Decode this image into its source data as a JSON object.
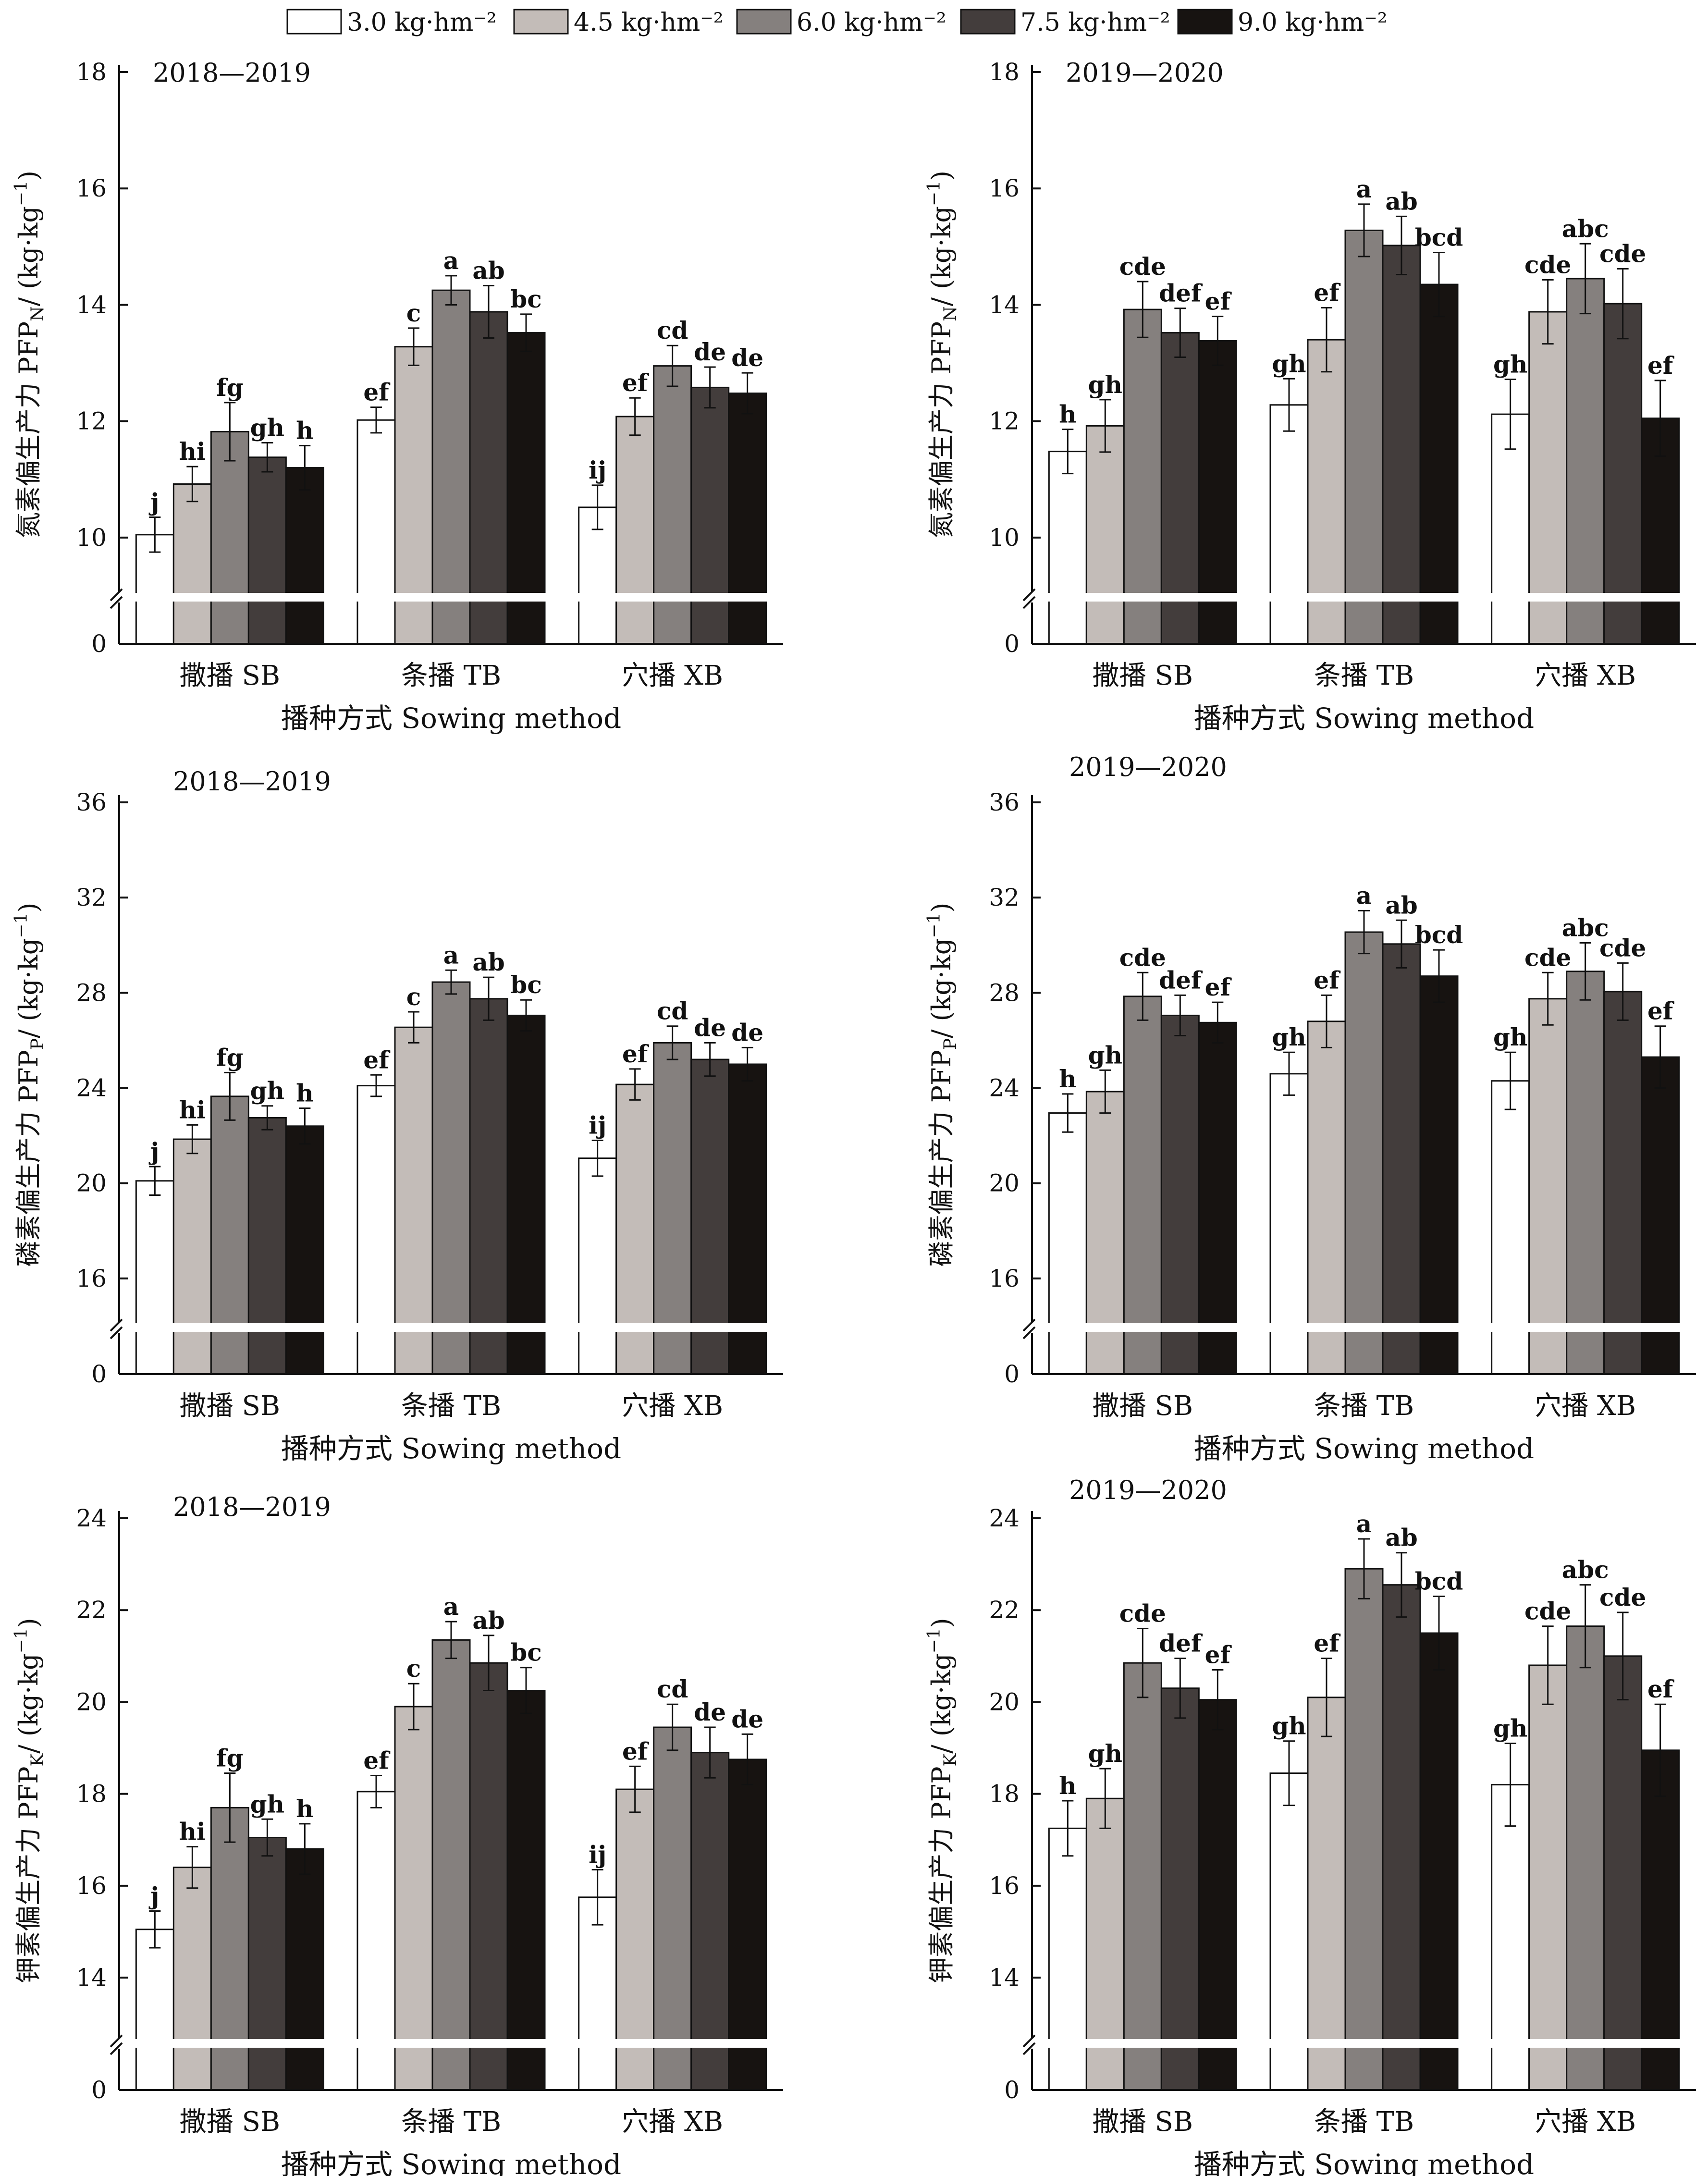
{
  "legend": {
    "series_names": [
      "3.0 kg·hm⁻²",
      "4.5 kg·hm⁻²",
      "6.0 kg·hm⁻²",
      "7.5 kg·hm⁻²",
      "9.0 kg·hm⁻²"
    ],
    "colors": [
      "#ffffff",
      "#c3bcb8",
      "#85807e",
      "#433d3c",
      "#171311"
    ],
    "position": "top"
  },
  "chart_data": [
    {
      "type": "bar",
      "panel": "a",
      "title": "2018—2019",
      "xlabel": "播种方式 Sowing method",
      "ylabel": "氮素偏生产力 PFPN/ (kg·kg⁻¹)",
      "ylabel_main": "氮素偏生产力 PFP",
      "ylabel_sub": "N",
      "ylabel_unit": "/ (kg·kg",
      "ylabel_sup": "−1",
      "ylabel_close": ")",
      "categories": [
        "撒播 SB",
        "条播 TB",
        "穴播 XB"
      ],
      "ylim": [
        0,
        18
      ],
      "ybreak_from": 9,
      "yticks": [
        0,
        10,
        12,
        14,
        16,
        18
      ],
      "series": [
        {
          "name": "3.0 kg·hm⁻²",
          "values": [
            10.05,
            12.02,
            10.52
          ],
          "errors": [
            0.3,
            0.22,
            0.38
          ],
          "letters": [
            "j",
            "ef",
            "ij"
          ]
        },
        {
          "name": "4.5 kg·hm⁻²",
          "values": [
            10.92,
            13.28,
            12.08
          ],
          "errors": [
            0.3,
            0.32,
            0.32
          ],
          "letters": [
            "hi",
            "c",
            "ef"
          ]
        },
        {
          "name": "6.0 kg·hm⁻²",
          "values": [
            11.82,
            14.25,
            12.95
          ],
          "errors": [
            0.5,
            0.25,
            0.35
          ],
          "letters": [
            "fg",
            "a",
            "cd"
          ]
        },
        {
          "name": "7.5 kg·hm⁻²",
          "values": [
            11.38,
            13.88,
            12.58
          ],
          "errors": [
            0.25,
            0.45,
            0.35
          ],
          "letters": [
            "gh",
            "ab",
            "de"
          ]
        },
        {
          "name": "9.0 kg·hm⁻²",
          "values": [
            11.2,
            13.52,
            12.48
          ],
          "errors": [
            0.38,
            0.32,
            0.35
          ],
          "letters": [
            "h",
            "bc",
            "de"
          ]
        }
      ]
    },
    {
      "type": "bar",
      "panel": "b",
      "title": "2019—2020",
      "xlabel": "播种方式 Sowing method",
      "ylabel": "氮素偏生产力 PFPN/ (kg·kg⁻¹)",
      "ylabel_main": "氮素偏生产力 PFP",
      "ylabel_sub": "N",
      "ylabel_unit": "/ (kg·kg",
      "ylabel_sup": "−1",
      "ylabel_close": ")",
      "categories": [
        "撒播 SB",
        "条播 TB",
        "穴播 XB"
      ],
      "ylim": [
        0,
        18
      ],
      "ybreak_from": 9,
      "yticks": [
        0,
        10,
        12,
        14,
        16,
        18
      ],
      "series": [
        {
          "name": "3.0 kg·hm⁻²",
          "values": [
            11.48,
            12.28,
            12.12
          ],
          "errors": [
            0.38,
            0.45,
            0.6
          ],
          "letters": [
            "h",
            "gh",
            "gh"
          ]
        },
        {
          "name": "4.5 kg·hm⁻²",
          "values": [
            11.92,
            13.4,
            13.88
          ],
          "errors": [
            0.45,
            0.55,
            0.55
          ],
          "letters": [
            "gh",
            "ef",
            "cde"
          ]
        },
        {
          "name": "6.0 kg·hm⁻²",
          "values": [
            13.92,
            15.28,
            14.45
          ],
          "errors": [
            0.48,
            0.45,
            0.6
          ],
          "letters": [
            "cde",
            "a",
            "abc"
          ]
        },
        {
          "name": "7.5 kg·hm⁻²",
          "values": [
            13.52,
            15.02,
            14.02
          ],
          "errors": [
            0.42,
            0.5,
            0.6
          ],
          "letters": [
            "def",
            "ab",
            "cde"
          ]
        },
        {
          "name": "9.0 kg·hm⁻²",
          "values": [
            13.38,
            14.35,
            12.05
          ],
          "errors": [
            0.42,
            0.55,
            0.65
          ],
          "letters": [
            "ef",
            "bcd",
            "ef"
          ]
        }
      ]
    },
    {
      "type": "bar",
      "panel": "c",
      "title": "2018—2019",
      "xlabel": "播种方式 Sowing method",
      "ylabel": "磷素偏生产力 PFPP/ (kg·kg⁻¹)",
      "ylabel_main": "磷素偏生产力 PFP",
      "ylabel_sub": "P",
      "ylabel_unit": "/ (kg·kg",
      "ylabel_sup": "−1",
      "ylabel_close": ")",
      "categories": [
        "撒播 SB",
        "条播 TB",
        "穴播 XB"
      ],
      "ylim": [
        0,
        36
      ],
      "ybreak_from": 14,
      "yticks": [
        0,
        16,
        20,
        24,
        28,
        32,
        36
      ],
      "series": [
        {
          "name": "3.0 kg·hm⁻²",
          "values": [
            20.1,
            24.1,
            21.05
          ],
          "errors": [
            0.6,
            0.45,
            0.75
          ],
          "letters": [
            "j",
            "ef",
            "ij"
          ]
        },
        {
          "name": "4.5 kg·hm⁻²",
          "values": [
            21.85,
            26.55,
            24.15
          ],
          "errors": [
            0.6,
            0.65,
            0.65
          ],
          "letters": [
            "hi",
            "c",
            "ef"
          ]
        },
        {
          "name": "6.0 kg·hm⁻²",
          "values": [
            23.65,
            28.45,
            25.9
          ],
          "errors": [
            1.0,
            0.5,
            0.7
          ],
          "letters": [
            "fg",
            "a",
            "cd"
          ]
        },
        {
          "name": "7.5 kg·hm⁻²",
          "values": [
            22.75,
            27.75,
            25.2
          ],
          "errors": [
            0.5,
            0.9,
            0.7
          ],
          "letters": [
            "gh",
            "ab",
            "de"
          ]
        },
        {
          "name": "9.0 kg·hm⁻²",
          "values": [
            22.4,
            27.05,
            25.0
          ],
          "errors": [
            0.75,
            0.65,
            0.7
          ],
          "letters": [
            "h",
            "bc",
            "de"
          ]
        }
      ]
    },
    {
      "type": "bar",
      "panel": "d",
      "title": "2019—2020",
      "xlabel": "播种方式 Sowing method",
      "ylabel": "磷素偏生产力 PFPP/ (kg·kg⁻¹)",
      "ylabel_main": "磷素偏生产力 PFP",
      "ylabel_sub": "P",
      "ylabel_unit": "/ (kg·kg",
      "ylabel_sup": "−1",
      "ylabel_close": ")",
      "categories": [
        "撒播 SB",
        "条播 TB",
        "穴播 XB"
      ],
      "ylim": [
        0,
        36
      ],
      "ybreak_from": 14,
      "yticks": [
        0,
        16,
        20,
        24,
        28,
        32,
        36
      ],
      "series": [
        {
          "name": "3.0 kg·hm⁻²",
          "values": [
            22.95,
            24.6,
            24.3
          ],
          "errors": [
            0.8,
            0.9,
            1.2
          ],
          "letters": [
            "h",
            "gh",
            "gh"
          ]
        },
        {
          "name": "4.5 kg·hm⁻²",
          "values": [
            23.85,
            26.8,
            27.75
          ],
          "errors": [
            0.9,
            1.1,
            1.1
          ],
          "letters": [
            "gh",
            "ef",
            "cde"
          ]
        },
        {
          "name": "6.0 kg·hm⁻²",
          "values": [
            27.85,
            30.55,
            28.9
          ],
          "errors": [
            1.0,
            0.9,
            1.2
          ],
          "letters": [
            "cde",
            "a",
            "abc"
          ]
        },
        {
          "name": "7.5 kg·hm⁻²",
          "values": [
            27.05,
            30.05,
            28.05
          ],
          "errors": [
            0.85,
            1.0,
            1.2
          ],
          "letters": [
            "def",
            "ab",
            "cde"
          ]
        },
        {
          "name": "9.0 kg·hm⁻²",
          "values": [
            26.75,
            28.7,
            25.3
          ],
          "errors": [
            0.85,
            1.1,
            1.3
          ],
          "letters": [
            "ef",
            "bcd",
            "ef"
          ]
        }
      ]
    },
    {
      "type": "bar",
      "panel": "e",
      "title": "2018—2019",
      "xlabel": "播种方式 Sowing method",
      "ylabel": "钾素偏生产力 PFPK/ (kg·kg⁻¹)",
      "ylabel_main": "钾素偏生产力 PFP",
      "ylabel_sub": "K",
      "ylabel_unit": "/ (kg·kg",
      "ylabel_sup": "−1",
      "ylabel_close": ")",
      "categories": [
        "撒播 SB",
        "条播 TB",
        "穴播 XB"
      ],
      "ylim": [
        0,
        24
      ],
      "ybreak_from": 12.6,
      "yticks": [
        0,
        14,
        16,
        18,
        20,
        22,
        24
      ],
      "series": [
        {
          "name": "3.0 kg·hm⁻²",
          "values": [
            15.05,
            18.05,
            15.75
          ],
          "errors": [
            0.4,
            0.35,
            0.6
          ],
          "letters": [
            "j",
            "ef",
            "ij"
          ]
        },
        {
          "name": "4.5 kg·hm⁻²",
          "values": [
            16.4,
            19.9,
            18.1
          ],
          "errors": [
            0.45,
            0.5,
            0.5
          ],
          "letters": [
            "hi",
            "c",
            "ef"
          ]
        },
        {
          "name": "6.0 kg·hm⁻²",
          "values": [
            17.7,
            21.35,
            19.45
          ],
          "errors": [
            0.75,
            0.4,
            0.5
          ],
          "letters": [
            "fg",
            "a",
            "cd"
          ]
        },
        {
          "name": "7.5 kg·hm⁻²",
          "values": [
            17.05,
            20.85,
            18.9
          ],
          "errors": [
            0.4,
            0.6,
            0.55
          ],
          "letters": [
            "gh",
            "ab",
            "de"
          ]
        },
        {
          "name": "9.0 kg·hm⁻²",
          "values": [
            16.8,
            20.25,
            18.75
          ],
          "errors": [
            0.55,
            0.5,
            0.55
          ],
          "letters": [
            "h",
            "bc",
            "de"
          ]
        }
      ]
    },
    {
      "type": "bar",
      "panel": "f",
      "title": "2019—2020",
      "xlabel": "播种方式 Sowing method",
      "ylabel": "钾素偏生产力 PFPK/ (kg·kg⁻¹)",
      "ylabel_main": "钾素偏生产力 PFP",
      "ylabel_sub": "K",
      "ylabel_unit": "/ (kg·kg",
      "ylabel_sup": "−1",
      "ylabel_close": ")",
      "categories": [
        "撒播 SB",
        "条播 TB",
        "穴播 XB"
      ],
      "ylim": [
        0,
        24
      ],
      "ybreak_from": 12.6,
      "yticks": [
        0,
        14,
        16,
        18,
        20,
        22,
        24
      ],
      "series": [
        {
          "name": "3.0 kg·hm⁻²",
          "values": [
            17.25,
            18.45,
            18.2
          ],
          "errors": [
            0.6,
            0.7,
            0.9
          ],
          "letters": [
            "h",
            "gh",
            "gh"
          ]
        },
        {
          "name": "4.5 kg·hm⁻²",
          "values": [
            17.9,
            20.1,
            20.8
          ],
          "errors": [
            0.65,
            0.85,
            0.85
          ],
          "letters": [
            "gh",
            "ef",
            "cde"
          ]
        },
        {
          "name": "6.0 kg·hm⁻²",
          "values": [
            20.85,
            22.9,
            21.65
          ],
          "errors": [
            0.75,
            0.65,
            0.9
          ],
          "letters": [
            "cde",
            "a",
            "abc"
          ]
        },
        {
          "name": "7.5 kg·hm⁻²",
          "values": [
            20.3,
            22.55,
            21.0
          ],
          "errors": [
            0.65,
            0.7,
            0.95
          ],
          "letters": [
            "def",
            "ab",
            "cde"
          ]
        },
        {
          "name": "9.0 kg·hm⁻²",
          "values": [
            20.05,
            21.5,
            18.95
          ],
          "errors": [
            0.65,
            0.8,
            1.0
          ],
          "letters": [
            "ef",
            "bcd",
            "ef"
          ]
        }
      ]
    }
  ]
}
